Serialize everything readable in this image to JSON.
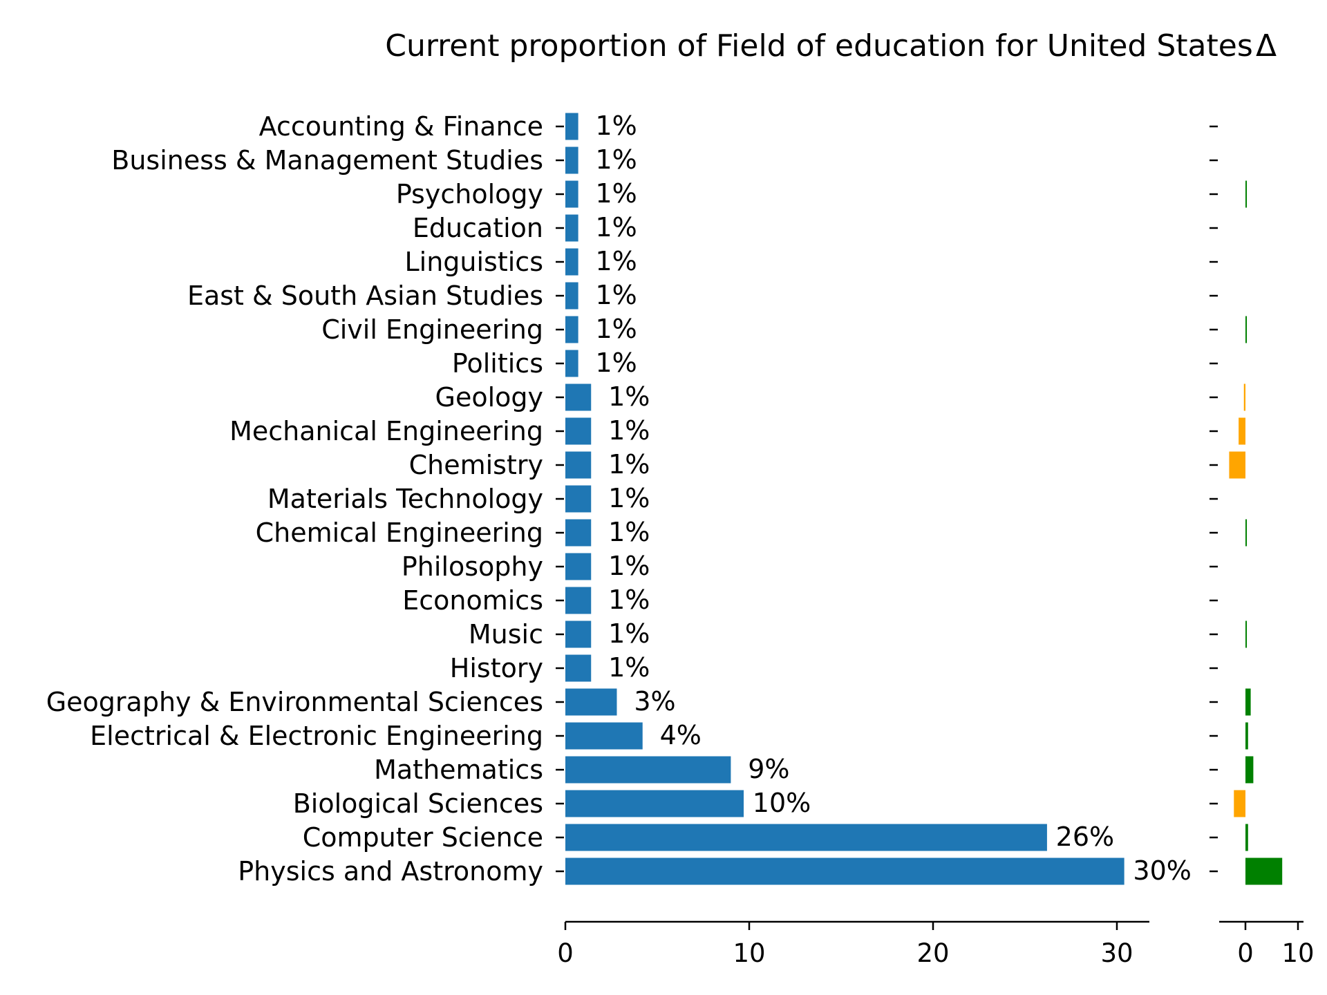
{
  "chart_data": [
    {
      "type": "bar",
      "orientation": "horizontal",
      "title": "Current proportion of Field of education for United States",
      "categories": [
        "Accounting & Finance",
        "Business & Management Studies",
        "Psychology",
        "Education",
        "Linguistics",
        "East & South Asian Studies",
        "Civil Engineering",
        "Politics",
        "Geology",
        "Mechanical Engineering",
        "Chemistry",
        "Materials Technology",
        "Chemical Engineering",
        "Philosophy",
        "Economics",
        "Music",
        "History",
        "Geography & Environmental Sciences",
        "Electrical & Electronic Engineering",
        "Mathematics",
        "Biological Sciences",
        "Computer Science",
        "Physics and Astronomy"
      ],
      "values": [
        0.7,
        0.7,
        0.7,
        0.7,
        0.7,
        0.7,
        0.7,
        0.7,
        1.4,
        1.4,
        1.4,
        1.4,
        1.4,
        1.4,
        1.4,
        1.4,
        1.4,
        2.8,
        4.2,
        9.0,
        9.7,
        26.2,
        30.4
      ],
      "data_labels": [
        "1%",
        "1%",
        "1%",
        "1%",
        "1%",
        "1%",
        "1%",
        "1%",
        "1%",
        "1%",
        "1%",
        "1%",
        "1%",
        "1%",
        "1%",
        "1%",
        "1%",
        "3%",
        "4%",
        "9%",
        "10%",
        "26%",
        "30%"
      ],
      "xlim": [
        0,
        32
      ],
      "xticks": [
        "0",
        "10",
        "20",
        "30"
      ],
      "color": "#1f77b4",
      "grid": false
    },
    {
      "type": "bar",
      "orientation": "horizontal",
      "title": "Δ",
      "categories_shared_with_left": true,
      "values": [
        0,
        0,
        0.1,
        0,
        0,
        0,
        0.1,
        0,
        -0.3,
        -1.3,
        -3.1,
        0,
        0.1,
        0,
        0,
        0.2,
        0,
        1.0,
        0.5,
        1.5,
        -2.2,
        0.5,
        7.0
      ],
      "xlim": [
        -3.6,
        7.5
      ],
      "xticks": [
        "0",
        "10"
      ],
      "positive_color": "#008000",
      "negative_color": "#ffa500",
      "grid": false
    }
  ]
}
